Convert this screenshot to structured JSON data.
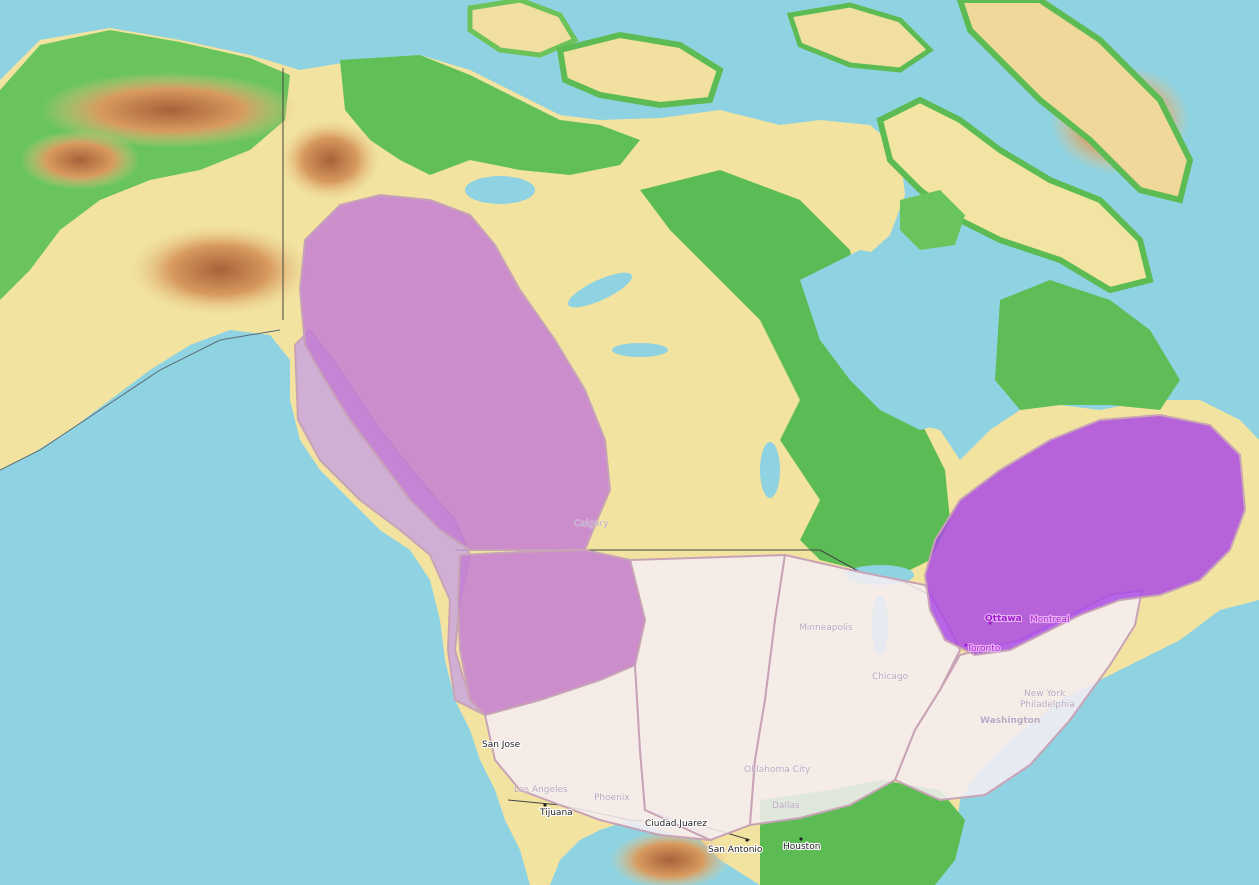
{
  "map": {
    "colors": {
      "water": "#8fd3e2",
      "lowland": "#4fb84b",
      "plain": "#f2e6a7",
      "upland": "#e9b77a",
      "mountain": "#c9804a",
      "border": "#444444",
      "region_strong": "#a847e6",
      "region_medium": "#c78ad9",
      "region_faint": "#f6eef2",
      "region_outline": "#c8a3b6"
    },
    "regions": [
      {
        "id": "northwest-interior",
        "shading": "medium"
      },
      {
        "id": "pacific-coast",
        "shading": "light-purple"
      },
      {
        "id": "pacific-northwest",
        "shading": "medium"
      },
      {
        "id": "southwest",
        "shading": "faint"
      },
      {
        "id": "mountain-plains",
        "shading": "faint"
      },
      {
        "id": "midwest-south",
        "shading": "faint"
      },
      {
        "id": "northeast",
        "shading": "faint"
      },
      {
        "id": "great-lakes-st-lawrence",
        "shading": "strong"
      }
    ],
    "labels": {
      "calgary": "Calgary",
      "minneapolis": "Minneapolis",
      "chicago": "Chicago",
      "new_york": "New York",
      "philadelphia": "Philadelphia",
      "washington": "Washington",
      "ottawa": "Ottawa",
      "montreal": "Montreal",
      "toronto": "Toronto",
      "san_jose": "San Jose",
      "los_angeles": "Los Angeles",
      "phoenix": "Phoenix",
      "tijuana": "Tijuana",
      "ciudad_juarez": "Ciudad Juarez",
      "oklahoma_city": "Oklahoma City",
      "dallas": "Dallas",
      "san_antonio": "San Antonio",
      "houston": "Houston"
    }
  }
}
